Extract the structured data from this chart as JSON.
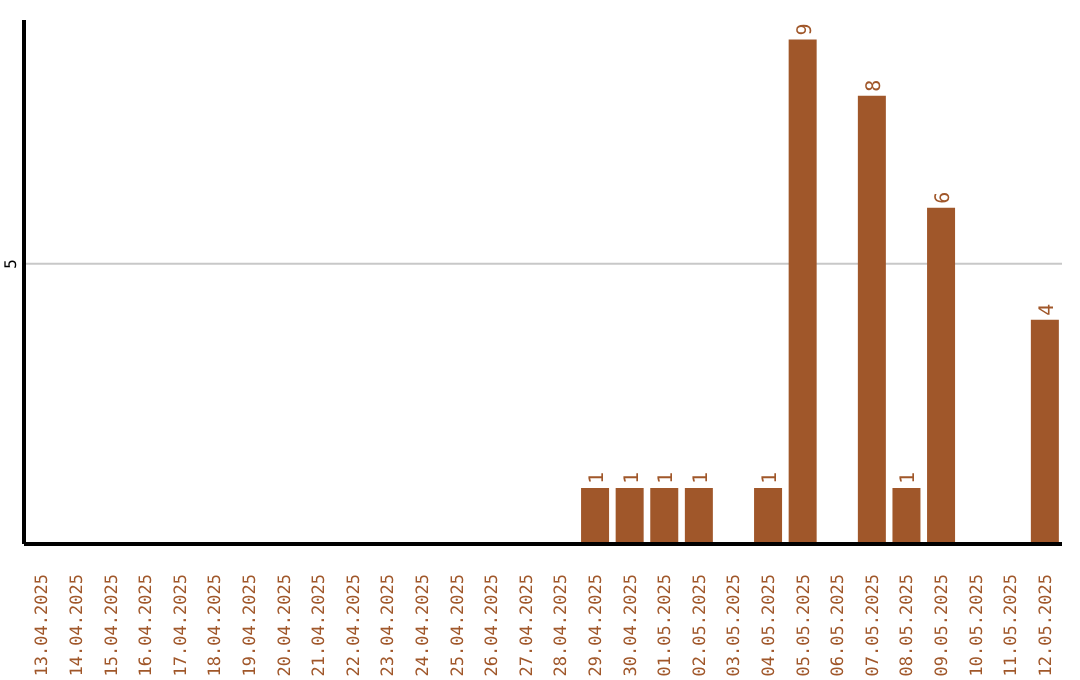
{
  "chart_data": {
    "type": "bar",
    "categories": [
      "13.04.2025",
      "14.04.2025",
      "15.04.2025",
      "16.04.2025",
      "17.04.2025",
      "18.04.2025",
      "19.04.2025",
      "20.04.2025",
      "21.04.2025",
      "22.04.2025",
      "23.04.2025",
      "24.04.2025",
      "25.04.2025",
      "26.04.2025",
      "27.04.2025",
      "28.04.2025",
      "29.04.2025",
      "30.04.2025",
      "01.05.2025",
      "02.05.2025",
      "03.05.2025",
      "04.05.2025",
      "05.05.2025",
      "06.05.2025",
      "07.05.2025",
      "08.05.2025",
      "09.05.2025",
      "10.05.2025",
      "11.05.2025",
      "12.05.2025"
    ],
    "values": [
      null,
      null,
      null,
      null,
      null,
      null,
      null,
      null,
      null,
      null,
      null,
      null,
      null,
      null,
      null,
      null,
      1,
      1,
      1,
      1,
      null,
      1,
      9,
      null,
      8,
      1,
      6,
      null,
      null,
      4
    ],
    "color": "#a0572a",
    "ylim": [
      0,
      9.35
    ],
    "yticks": [
      5
    ],
    "grid": "y",
    "data_labels": true
  }
}
